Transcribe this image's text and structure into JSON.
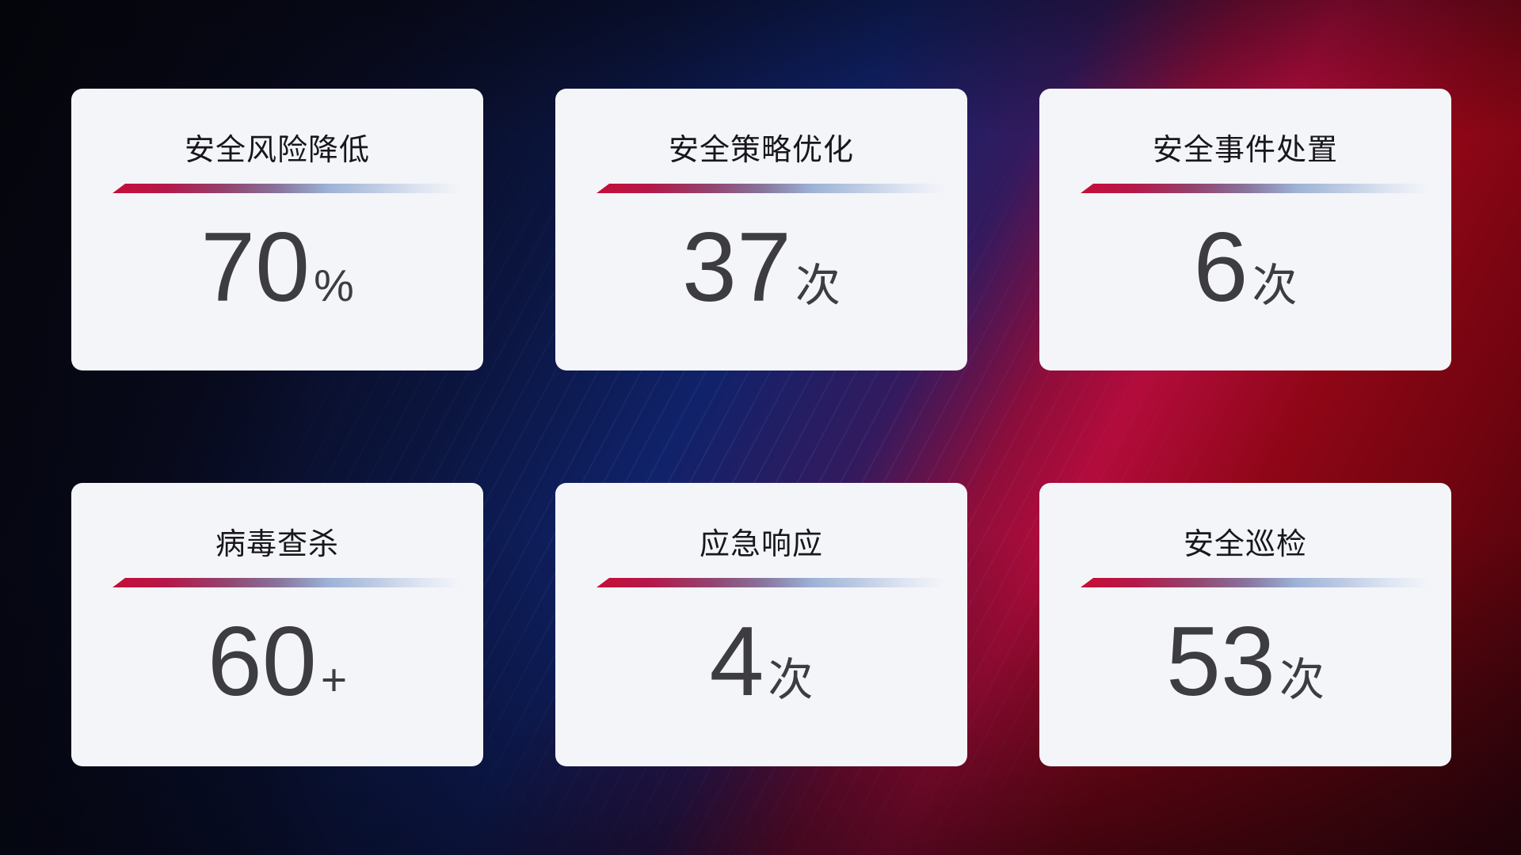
{
  "cards": [
    {
      "title": "安全风险降低",
      "value": "70",
      "unit": "%"
    },
    {
      "title": "安全策略优化",
      "value": "37",
      "unit": "次"
    },
    {
      "title": "安全事件处置",
      "value": "6",
      "unit": "次"
    },
    {
      "title": "病毒查杀",
      "value": "60",
      "unit": "+"
    },
    {
      "title": "应急响应",
      "value": "4",
      "unit": "次"
    },
    {
      "title": "安全巡检",
      "value": "53",
      "unit": "次"
    }
  ],
  "colors": {
    "card_background": "#f4f5f9",
    "title_text": "#17171c",
    "value_text": "#3c3c41",
    "divider_red": "#c60e38",
    "divider_blue": "#9db2d6",
    "bg_navy": "#10226a",
    "bg_crimson": "#b30c3c",
    "bg_dark_red": "#6f040f"
  }
}
